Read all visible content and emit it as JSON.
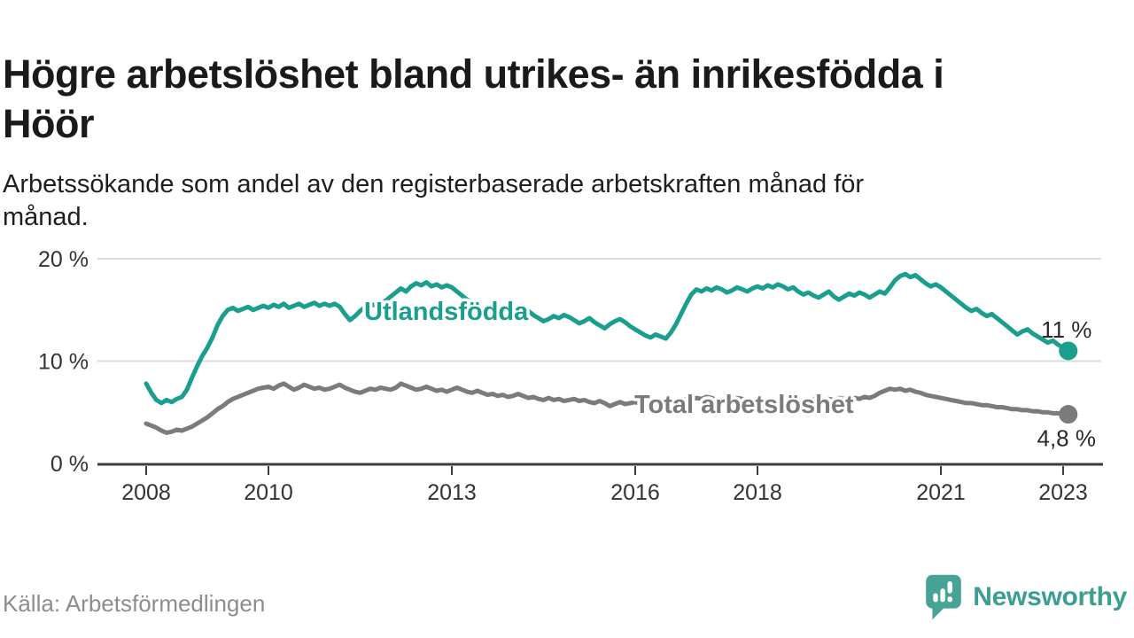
{
  "header": {
    "title_lines": [
      "Högre arbetslöshet bland utrikes- än inrikesfödda i",
      "Höör"
    ],
    "subtitle_lines": [
      "Arbetssökande som andel av den registerbaserade arbetskraften månad för",
      "månad."
    ]
  },
  "footer": {
    "source": "Källa: Arbetsförmedlingen",
    "brand": "Newsworthy"
  },
  "colors": {
    "series_foreign": "#1a9e8d",
    "series_total": "#7b7b7e",
    "grid": "#dcdcdc",
    "axis": "#3b3b3b",
    "logo_teal": "#47a396",
    "logo_text": "#3a9f91"
  },
  "chart_data": {
    "type": "line",
    "title": "Högre arbetslöshet bland utrikes- än inrikesfödda i Höör",
    "subtitle": "Arbetssökande som andel av den registerbaserade arbetskraften månad för månad.",
    "xlabel": "",
    "ylabel": "",
    "x_unit": "month",
    "x_start": "2008-01",
    "x_end": "2023-02",
    "grid": true,
    "ylim": [
      0,
      20
    ],
    "y_ticks": [
      {
        "value": 20,
        "label": "20 %"
      },
      {
        "value": 10,
        "label": "10 %"
      },
      {
        "value": 0,
        "label": "0 %"
      }
    ],
    "x_ticks": [
      {
        "year": 2008,
        "label": "2008"
      },
      {
        "year": 2010,
        "label": "2010"
      },
      {
        "year": 2013,
        "label": "2013"
      },
      {
        "year": 2016,
        "label": "2016"
      },
      {
        "year": 2018,
        "label": "2018"
      },
      {
        "year": 2021,
        "label": "2021"
      },
      {
        "year": 2023,
        "label": "2023"
      }
    ],
    "series": [
      {
        "name": "Utlandsfödda",
        "color": "#1a9e8d",
        "end_label": "11 %",
        "end_value": 11,
        "label_position": "above",
        "values": [
          7.8,
          6.9,
          6.2,
          5.9,
          6.2,
          6.0,
          6.3,
          6.5,
          7.2,
          8.4,
          9.5,
          10.5,
          11.3,
          12.3,
          13.5,
          14.4,
          15.0,
          15.2,
          14.9,
          15.1,
          15.3,
          15.0,
          15.2,
          15.4,
          15.2,
          15.5,
          15.3,
          15.6,
          15.2,
          15.4,
          15.6,
          15.3,
          15.5,
          15.7,
          15.4,
          15.6,
          15.4,
          15.6,
          15.3,
          14.6,
          14.0,
          14.4,
          14.9,
          15.3,
          15.6,
          15.4,
          15.7,
          15.9,
          16.3,
          16.7,
          17.1,
          16.8,
          17.3,
          17.6,
          17.4,
          17.7,
          17.3,
          17.5,
          17.2,
          17.4,
          17.2,
          16.8,
          16.4,
          16.0,
          15.7,
          15.3,
          15.0,
          14.7,
          14.4,
          14.6,
          14.3,
          14.5,
          14.7,
          14.4,
          14.8,
          14.9,
          14.5,
          14.2,
          13.9,
          14.1,
          14.4,
          14.2,
          14.5,
          14.3,
          14.0,
          13.7,
          13.9,
          14.2,
          13.8,
          13.5,
          13.2,
          13.6,
          13.9,
          14.1,
          13.8,
          13.4,
          13.1,
          12.8,
          12.5,
          12.3,
          12.6,
          12.4,
          12.2,
          12.8,
          13.6,
          14.6,
          15.6,
          16.5,
          17.0,
          16.8,
          17.1,
          16.9,
          17.2,
          17.0,
          16.7,
          16.9,
          17.2,
          17.0,
          16.8,
          17.1,
          17.3,
          17.1,
          17.4,
          17.2,
          17.5,
          17.3,
          17.0,
          17.2,
          16.8,
          16.5,
          16.7,
          16.4,
          16.2,
          16.5,
          16.8,
          16.3,
          16.0,
          16.3,
          16.6,
          16.4,
          16.7,
          16.5,
          16.2,
          16.5,
          16.8,
          16.6,
          17.2,
          17.9,
          18.3,
          18.5,
          18.2,
          18.4,
          18.0,
          17.6,
          17.3,
          17.5,
          17.2,
          16.8,
          16.4,
          16.0,
          15.6,
          15.2,
          14.9,
          15.1,
          14.7,
          14.4,
          14.6,
          14.2,
          13.8,
          13.4,
          13.0,
          12.6,
          12.9,
          13.1,
          12.7,
          12.4,
          12.1,
          11.8,
          12.0,
          11.6,
          11.3,
          11.0
        ]
      },
      {
        "name": "Total arbetslöshet",
        "color": "#7b7b7e",
        "end_label": "4,8 %",
        "end_value": 4.8,
        "label_position": "below",
        "values": [
          3.9,
          3.7,
          3.5,
          3.2,
          3.0,
          3.1,
          3.3,
          3.2,
          3.4,
          3.6,
          3.9,
          4.2,
          4.5,
          4.9,
          5.3,
          5.6,
          6.0,
          6.3,
          6.5,
          6.7,
          6.9,
          7.1,
          7.3,
          7.4,
          7.5,
          7.3,
          7.6,
          7.8,
          7.5,
          7.2,
          7.4,
          7.7,
          7.5,
          7.3,
          7.4,
          7.2,
          7.3,
          7.5,
          7.7,
          7.4,
          7.2,
          7.0,
          6.9,
          7.1,
          7.3,
          7.2,
          7.4,
          7.3,
          7.2,
          7.4,
          7.8,
          7.6,
          7.4,
          7.2,
          7.3,
          7.5,
          7.3,
          7.1,
          7.2,
          7.0,
          7.2,
          7.4,
          7.2,
          7.0,
          6.9,
          7.1,
          6.9,
          6.7,
          6.8,
          6.6,
          6.7,
          6.5,
          6.6,
          6.8,
          6.6,
          6.4,
          6.5,
          6.3,
          6.2,
          6.4,
          6.2,
          6.3,
          6.1,
          6.2,
          6.3,
          6.1,
          6.2,
          6.0,
          5.9,
          6.1,
          5.9,
          5.6,
          5.8,
          6.0,
          5.8,
          5.9,
          6.0,
          5.8,
          5.6,
          5.8,
          5.7,
          5.9,
          6.1,
          6.0,
          6.2,
          6.1,
          6.3,
          6.2,
          6.4,
          6.3,
          6.5,
          6.4,
          6.2,
          6.3,
          6.1,
          6.2,
          6.4,
          6.3,
          6.2,
          6.0,
          6.1,
          6.0,
          6.2,
          6.1,
          5.9,
          6.0,
          6.2,
          6.1,
          6.0,
          6.2,
          6.1,
          6.3,
          6.2,
          6.1,
          6.3,
          6.2,
          6.4,
          6.3,
          6.2,
          6.4,
          6.3,
          6.5,
          6.4,
          6.6,
          6.9,
          7.1,
          7.3,
          7.2,
          7.3,
          7.1,
          7.2,
          7.0,
          6.9,
          6.7,
          6.6,
          6.5,
          6.4,
          6.3,
          6.2,
          6.1,
          6.0,
          5.9,
          5.9,
          5.8,
          5.7,
          5.7,
          5.6,
          5.5,
          5.5,
          5.4,
          5.3,
          5.3,
          5.2,
          5.2,
          5.1,
          5.1,
          5.0,
          5.0,
          4.9,
          4.9,
          4.8,
          4.8
        ]
      }
    ]
  }
}
